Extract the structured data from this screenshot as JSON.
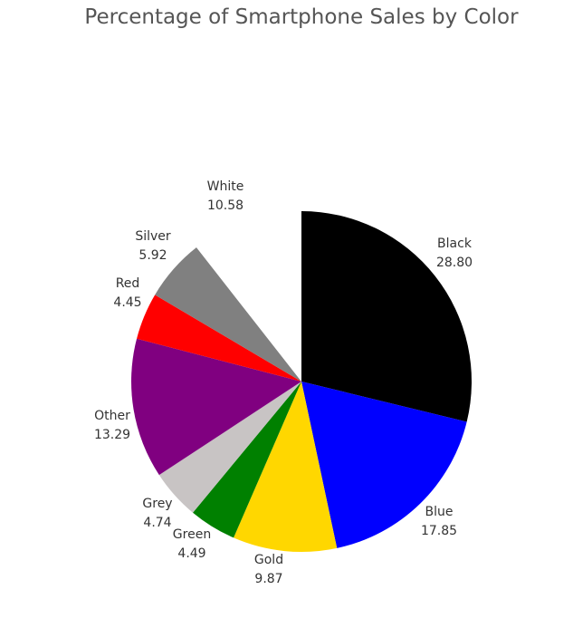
{
  "chart_data": {
    "type": "pie",
    "title": "Percentage of Smartphone Sales by Color",
    "start": "12 o'clock",
    "direction": "clockwise",
    "slices": [
      {
        "label": "Black",
        "value_text": "28.80",
        "value": 28.8,
        "color": "#000000",
        "exploded": false
      },
      {
        "label": "Blue",
        "value_text": "17.85",
        "value": 17.85,
        "color": "#0000ff",
        "exploded": false
      },
      {
        "label": "Gold",
        "value_text": "9.87",
        "value": 9.87,
        "color": "#ffd700",
        "exploded": false
      },
      {
        "label": "Green",
        "value_text": "4.49",
        "value": 4.49,
        "color": "#008000",
        "exploded": false
      },
      {
        "label": "Grey",
        "value_text": "4.74",
        "value": 4.74,
        "color": "#c8c4c4",
        "exploded": false
      },
      {
        "label": "Other",
        "value_text": "13.29",
        "value": 13.29,
        "color": "#800080",
        "exploded": false
      },
      {
        "label": "Red",
        "value_text": "4.45",
        "value": 4.45,
        "color": "#ff0000",
        "exploded": false
      },
      {
        "label": "Silver",
        "value_text": "5.92",
        "value": 5.92,
        "color": "#808080",
        "exploded": false
      },
      {
        "label": "White",
        "value_text": "10.58",
        "value": 10.58,
        "color": "#ffffff",
        "exploded": false
      }
    ]
  }
}
